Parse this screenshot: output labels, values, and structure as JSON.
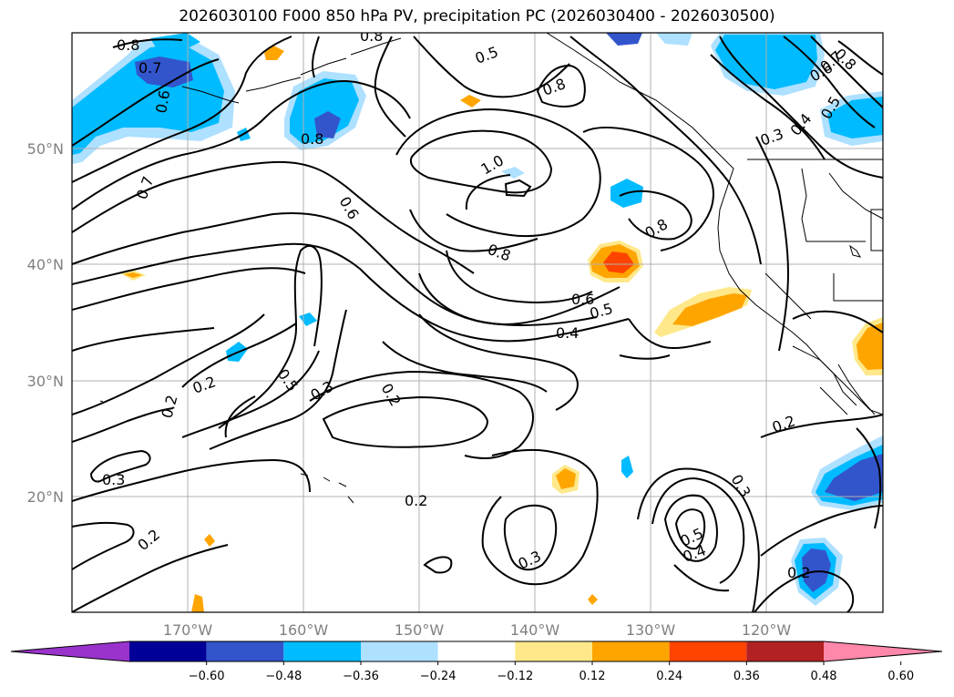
{
  "title": "2026030100 F000 850 hPa PV, precipitation PC (2026030400 - 2026030500)",
  "lon_labels": [
    "170°W",
    "160°W",
    "150°W",
    "140°W",
    "130°W",
    "120°W"
  ],
  "lat_labels": [
    "50°N",
    "40°N",
    "30°N",
    "20°N"
  ],
  "colorbar": {
    "ticks": [
      "−0.60",
      "−0.48",
      "−0.36",
      "−0.24",
      "−0.12",
      "0.12",
      "0.24",
      "0.36",
      "0.48",
      "0.60"
    ],
    "colors": [
      "#9933cc",
      "#000099",
      "#3355cc",
      "#00bbff",
      "#aee0ff",
      "#ffffff",
      "#ffe88a",
      "#ffa500",
      "#ff4400",
      "#b22222",
      "#ff88aa"
    ]
  },
  "contour_labels": [
    "0.8",
    "0.7",
    "0.6",
    "0.8",
    "0.8",
    "0.5",
    "0.8",
    "0.8",
    "0.7",
    "0.6",
    "0.5",
    "0.4",
    "0.3",
    "1.0",
    "0.7",
    "0.6",
    "0.8",
    "0.8",
    "0.6",
    "0.5",
    "0.4",
    "0.2",
    "0.2",
    "0.5",
    "0.3",
    "0.2",
    "0.3",
    "0.2",
    "0.2",
    "0.3",
    "0.3",
    "0.5",
    "0.4",
    "0.2",
    "0.2"
  ],
  "shading_colors": {
    "light_blue": "#aee0ff",
    "cyan": "#00bbff",
    "blue": "#3355cc",
    "yellow": "#ffe88a",
    "orange": "#ffa500",
    "red": "#ff4400"
  }
}
